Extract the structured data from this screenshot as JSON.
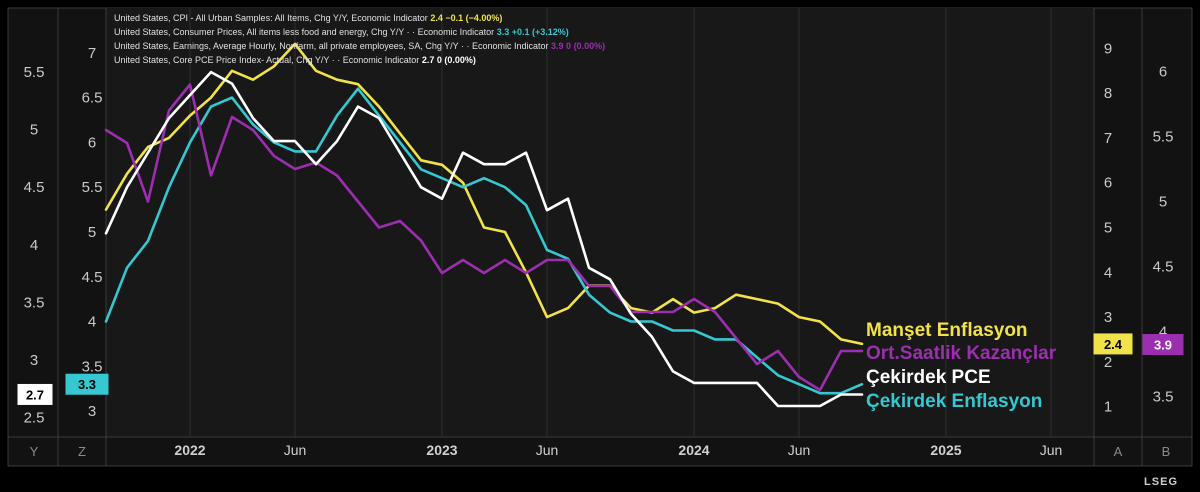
{
  "chart_data": {
    "type": "line",
    "legend": [
      {
        "text": "United States, CPI - All Urban Samples: All Items, Chg Y/Y, Economic Indicator",
        "value": "2.4",
        "change": "−0.1 (−4.00%)",
        "color": "#f2e24a"
      },
      {
        "text": "United States, Consumer Prices, All items less food and energy, Chg Y/Y · · Economic Indicator",
        "value": "3.3",
        "change": "+0.1 (+3.12%)",
        "color": "#35c8d0"
      },
      {
        "text": "United States, Earnings, Average Hourly, Nonfarm, all private employees, SA, Chg Y/Y · · Economic Indicator",
        "value": "3.9",
        "change": "0 (0.00%)",
        "color": "#9c2eb0"
      },
      {
        "text": "United States, Core PCE Price Index- Actual, Chg Y/Y · · Economic Indicator",
        "value": "2.7",
        "change": "0 (0.00%)",
        "color": "#ffffff"
      }
    ],
    "series_labels": [
      {
        "text": "Manşet Enflasyon",
        "color": "#f2e24a"
      },
      {
        "text": "Ort.Saatlik Kazançlar",
        "color": "#9c2eb0"
      },
      {
        "text": "Çekirdek PCE",
        "color": "#ffffff"
      },
      {
        "text": "Çekirdek Enflasyon",
        "color": "#35c8d0"
      }
    ],
    "x_tick_labels": [
      {
        "text": "2022",
        "bold": true
      },
      {
        "text": "Jun",
        "bold": false
      },
      {
        "text": "2023",
        "bold": true
      },
      {
        "text": "Jun",
        "bold": false
      },
      {
        "text": "2024",
        "bold": true
      },
      {
        "text": "Jun",
        "bold": false
      },
      {
        "text": "2025",
        "bold": true
      },
      {
        "text": "Jun",
        "bold": false
      }
    ],
    "axes": {
      "Y": {
        "ticks": [
          "5.5",
          "5",
          "4.5",
          "4",
          "3.5",
          "3",
          "2.5"
        ],
        "range": [
          2.4,
          5.9
        ],
        "tag": "2.7",
        "tag_color": "#ffffff"
      },
      "Z": {
        "ticks": [
          "7",
          "6.5",
          "6",
          "5.5",
          "5",
          "4.5",
          "4",
          "3.5",
          "3"
        ],
        "range": [
          2.8,
          7.3
        ],
        "tag": "3.3",
        "tag_color": "#35c8d0"
      },
      "A": {
        "ticks": [
          "9",
          "8",
          "7",
          "6",
          "5",
          "4",
          "3",
          "2",
          "1"
        ],
        "range": [
          0.5,
          9.5
        ],
        "tag": "2.4",
        "tag_color": "#f2e24a"
      },
      "B": {
        "ticks": [
          "6",
          "5.5",
          "5",
          "4.5",
          "4",
          "3.5"
        ],
        "range": [
          3.25,
          6.35
        ],
        "tag": "3.9",
        "tag_color": "#9c2eb0"
      }
    },
    "axis_letters": [
      "Y",
      "Z",
      "A",
      "B"
    ],
    "months": [
      "2021-09",
      "2021-10",
      "2021-11",
      "2021-12",
      "2022-01",
      "2022-02",
      "2022-03",
      "2022-04",
      "2022-05",
      "2022-06",
      "2022-07",
      "2022-08",
      "2022-09",
      "2022-10",
      "2022-11",
      "2022-12",
      "2023-01",
      "2023-02",
      "2023-03",
      "2023-04",
      "2023-05",
      "2023-06",
      "2023-07",
      "2023-08",
      "2023-09",
      "2023-10",
      "2023-11",
      "2023-12",
      "2024-01",
      "2024-02",
      "2024-03",
      "2024-04",
      "2024-05",
      "2024-06",
      "2024-07",
      "2024-08",
      "2024-09"
    ],
    "series": [
      {
        "name": "United States, CPI - All Urban Samples: All Items, Chg Y/Y",
        "axis": "A",
        "color": "#f2e24a",
        "values": [
          5.4,
          6.2,
          6.8,
          7.0,
          7.5,
          7.9,
          8.5,
          8.3,
          8.6,
          9.1,
          8.5,
          8.3,
          8.2,
          7.7,
          7.1,
          6.5,
          6.4,
          6.0,
          5.0,
          4.9,
          4.0,
          3.0,
          3.2,
          3.7,
          3.7,
          3.2,
          3.1,
          3.4,
          3.1,
          3.2,
          3.5,
          3.4,
          3.3,
          3.0,
          2.9,
          2.5,
          2.4
        ]
      },
      {
        "name": "United States, Consumer Prices, All items less food and energy, Chg Y/Y",
        "axis": "Z",
        "color": "#35c8d0",
        "values": [
          4.0,
          4.6,
          4.9,
          5.5,
          6.0,
          6.4,
          6.5,
          6.2,
          6.0,
          5.9,
          5.9,
          6.3,
          6.6,
          6.3,
          6.0,
          5.7,
          5.6,
          5.5,
          5.6,
          5.5,
          5.3,
          4.8,
          4.7,
          4.3,
          4.1,
          4.0,
          4.0,
          3.9,
          3.9,
          3.8,
          3.8,
          3.6,
          3.4,
          3.3,
          3.2,
          3.2,
          3.3
        ]
      },
      {
        "name": "United States, Earnings, Average Hourly, Nonfarm, all private employees, SA, Chg Y/Y",
        "axis": "B",
        "color": "#9c2eb0",
        "values": [
          5.55,
          5.45,
          5.0,
          5.7,
          5.9,
          5.2,
          5.65,
          5.55,
          5.35,
          5.25,
          5.3,
          5.2,
          5.0,
          4.8,
          4.85,
          4.7,
          4.45,
          4.55,
          4.45,
          4.55,
          4.45,
          4.55,
          4.55,
          4.35,
          4.35,
          4.15,
          4.15,
          4.15,
          4.25,
          4.15,
          3.95,
          3.75,
          3.85,
          3.65,
          3.55,
          3.85,
          3.85
        ]
      },
      {
        "name": "United States, Core PCE Price Index- Actual, Chg Y/Y",
        "axis": "Y",
        "color": "#ffffff",
        "values": [
          4.1,
          4.5,
          4.8,
          5.1,
          5.3,
          5.5,
          5.4,
          5.1,
          4.9,
          4.9,
          4.7,
          4.9,
          5.2,
          5.1,
          4.8,
          4.5,
          4.4,
          4.8,
          4.7,
          4.7,
          4.8,
          4.3,
          4.4,
          3.8,
          3.7,
          3.4,
          3.2,
          2.9,
          2.8,
          2.8,
          2.8,
          2.8,
          2.6,
          2.6,
          2.6,
          2.7,
          2.7
        ]
      }
    ]
  },
  "brand": "LSEG"
}
